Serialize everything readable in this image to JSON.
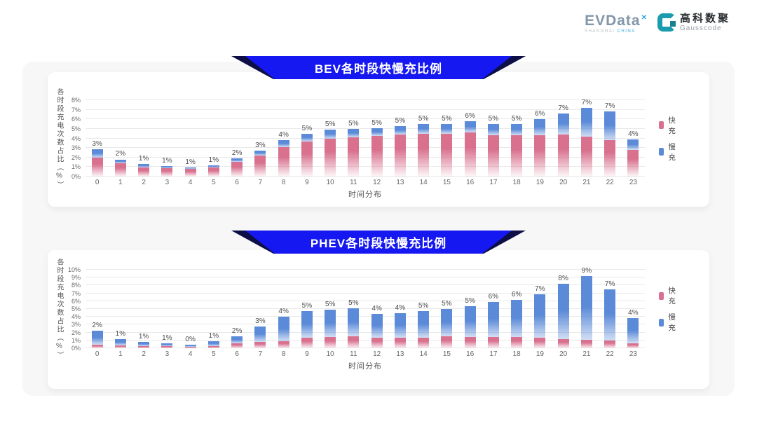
{
  "logo": {
    "evdata_text": "EVData",
    "evdata_mark": "✕",
    "evdata_sub_left": "SHANGHAI ",
    "evdata_sub_right": "CHINA",
    "gausscode_cn": "高科数聚",
    "gausscode_en": "Gausscode"
  },
  "colors": {
    "banner_blue": "#1518f0",
    "fast_pink": "#d8708e",
    "slow_blue": "#5b8ad8"
  },
  "chart_data": [
    {
      "type": "bar",
      "stacked": true,
      "title": "BEV各时段快慢充比例",
      "xlabel": "时间分布",
      "ylabel": "各时段充电次数占比（%）",
      "ymax": 8,
      "ytick_step": 1,
      "ytick_suffix": "%",
      "grid": true,
      "legend_position": "right",
      "categories": [
        "0",
        "1",
        "2",
        "3",
        "4",
        "5",
        "6",
        "7",
        "8",
        "9",
        "10",
        "11",
        "12",
        "13",
        "14",
        "15",
        "16",
        "17",
        "18",
        "19",
        "20",
        "21",
        "22",
        "23"
      ],
      "series": [
        {
          "name": "快充",
          "color": "#d8708e",
          "values": [
            2.0,
            1.4,
            0.95,
            0.85,
            0.8,
            0.95,
            1.55,
            2.2,
            3.1,
            3.7,
            4.0,
            4.1,
            4.25,
            4.4,
            4.5,
            4.5,
            4.6,
            4.3,
            4.3,
            4.3,
            4.4,
            4.2,
            3.8,
            2.8
          ]
        },
        {
          "name": "慢充",
          "color": "#5b8ad8",
          "values": [
            0.9,
            0.4,
            0.35,
            0.25,
            0.15,
            0.25,
            0.35,
            0.5,
            0.7,
            0.8,
            0.9,
            0.9,
            0.85,
            0.9,
            1.0,
            1.0,
            1.2,
            1.2,
            1.2,
            1.7,
            2.2,
            3.0,
            3.0,
            1.1
          ]
        }
      ],
      "total_labels": [
        "3%",
        "2%",
        "1%",
        "1%",
        "1%",
        "1%",
        "2%",
        "3%",
        "4%",
        "5%",
        "5%",
        "5%",
        "5%",
        "5%",
        "5%",
        "5%",
        "6%",
        "5%",
        "5%",
        "6%",
        "7%",
        "7%",
        "7%",
        "4%"
      ]
    },
    {
      "type": "bar",
      "stacked": true,
      "title": "PHEV各时段快慢充比例",
      "xlabel": "时间分布",
      "ylabel": "各时段充电次数占比（%）",
      "ymax": 10,
      "ytick_step": 1,
      "ytick_suffix": "%",
      "grid": true,
      "legend_position": "right",
      "categories": [
        "0",
        "1",
        "2",
        "3",
        "4",
        "5",
        "6",
        "7",
        "8",
        "9",
        "10",
        "11",
        "12",
        "13",
        "14",
        "15",
        "16",
        "17",
        "18",
        "19",
        "20",
        "21",
        "22",
        "23"
      ],
      "series": [
        {
          "name": "快充",
          "color": "#d8708e",
          "values": [
            0.45,
            0.4,
            0.3,
            0.28,
            0.2,
            0.3,
            0.6,
            0.8,
            0.9,
            1.3,
            1.4,
            1.5,
            1.3,
            1.3,
            1.3,
            1.5,
            1.4,
            1.4,
            1.4,
            1.3,
            1.2,
            1.1,
            1.0,
            0.6
          ]
        },
        {
          "name": "慢充",
          "color": "#5b8ad8",
          "values": [
            1.75,
            0.8,
            0.5,
            0.37,
            0.25,
            0.55,
            0.95,
            2.0,
            3.1,
            3.4,
            3.5,
            3.6,
            3.1,
            3.2,
            3.4,
            3.5,
            4.0,
            4.5,
            4.8,
            5.6,
            7.0,
            8.1,
            6.5,
            3.2
          ]
        }
      ],
      "total_labels": [
        "2%",
        "1%",
        "1%",
        "1%",
        "0%",
        "1%",
        "2%",
        "3%",
        "4%",
        "5%",
        "5%",
        "5%",
        "4%",
        "4%",
        "5%",
        "5%",
        "5%",
        "6%",
        "6%",
        "7%",
        "8%",
        "9%",
        "7%",
        "4%"
      ]
    }
  ]
}
